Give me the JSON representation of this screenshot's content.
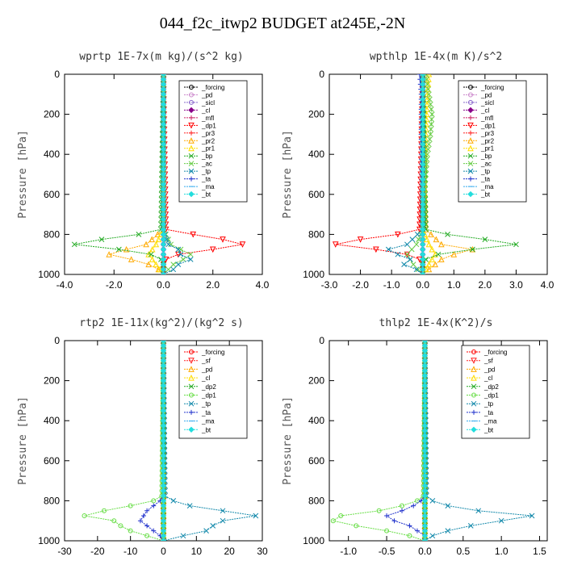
{
  "page": {
    "title": "044_f2c_itwp2  BUDGET at245E,-2N"
  },
  "chart_data": [
    {
      "type": "line",
      "title": "wprtp  1E-7x(m kg)/(s^2 kg)",
      "ylabel": "Pressure [hPa]",
      "xlim": [
        -4.0,
        4.0
      ],
      "ylim": [
        1000,
        0
      ],
      "xticks": [
        "-4.0",
        "-2.0",
        "0.0",
        "2.0",
        "4.0"
      ],
      "yticks": [
        "0",
        "200",
        "400",
        "600",
        "800",
        "1000"
      ],
      "legend_position": "top-right",
      "series": [
        {
          "name": "_forcing",
          "color": "#000000",
          "marker": "o",
          "y": [
            0,
            775,
            1000
          ],
          "x": [
            0,
            0,
            0
          ]
        },
        {
          "name": "_pd",
          "color": "#cc88cc",
          "marker": "o",
          "y": [
            0,
            775,
            1000
          ],
          "x": [
            0,
            0,
            0
          ]
        },
        {
          "name": "_sicl",
          "color": "#8866cc",
          "marker": "o",
          "y": [
            0,
            775,
            1000
          ],
          "x": [
            0,
            0,
            0
          ]
        },
        {
          "name": "_cl",
          "color": "#880088",
          "marker": "d",
          "y": [
            0,
            775,
            1000
          ],
          "x": [
            0,
            0,
            0
          ]
        },
        {
          "name": "_mfl",
          "color": "#cc2266",
          "marker": "+",
          "y": [
            0,
            775,
            1000
          ],
          "x": [
            0,
            0,
            0
          ]
        },
        {
          "name": "_dp1",
          "color": "#ff0000",
          "marker": "v",
          "y": [
            0,
            775,
            800,
            825,
            850,
            875,
            900,
            925,
            950,
            975,
            1000
          ],
          "x": [
            0,
            0.1,
            1.2,
            2.4,
            3.2,
            2.0,
            0.6,
            0.1,
            0,
            0,
            0
          ]
        },
        {
          "name": "_pr3",
          "color": "#ff2222",
          "marker": "+",
          "y": [
            0,
            775,
            1000
          ],
          "x": [
            0,
            0,
            0
          ]
        },
        {
          "name": "_pr2",
          "color": "#ffaa00",
          "marker": "^",
          "y": [
            0,
            775,
            850,
            875,
            900,
            925,
            950,
            975,
            1000
          ],
          "x": [
            0,
            0,
            -0.7,
            -1.5,
            -2.2,
            -1.3,
            -0.6,
            -0.2,
            0
          ]
        },
        {
          "name": "_pr1",
          "color": "#ffdd00",
          "marker": "^",
          "y": [
            0,
            775,
            850,
            900,
            950,
            1000
          ],
          "x": [
            0,
            0,
            -0.3,
            -0.6,
            -0.3,
            0
          ]
        },
        {
          "name": "_bp",
          "color": "#22aa22",
          "marker": "x",
          "y": [
            0,
            775,
            800,
            825,
            850,
            875,
            900,
            925,
            950,
            975,
            1000
          ],
          "x": [
            0,
            -0.1,
            -1.0,
            -2.5,
            -3.6,
            -1.8,
            -0.5,
            -0.1,
            0,
            0,
            0
          ]
        },
        {
          "name": "_ac",
          "color": "#66cc44",
          "marker": "x",
          "y": [
            0,
            775,
            850,
            900,
            925,
            950,
            975,
            1000
          ],
          "x": [
            0,
            0,
            0.3,
            1.1,
            0.8,
            0.4,
            0.2,
            0
          ]
        },
        {
          "name": "_tp",
          "color": "#1188aa",
          "marker": "x",
          "y": [
            0,
            775,
            850,
            875,
            900,
            925,
            950,
            975,
            1000
          ],
          "x": [
            0,
            0,
            0.2,
            0.6,
            0.7,
            1.1,
            0.6,
            0.4,
            0
          ]
        },
        {
          "name": "_ta",
          "color": "#2233cc",
          "marker": "+",
          "y": [
            0,
            775,
            1000
          ],
          "x": [
            0,
            0,
            0
          ]
        },
        {
          "name": "_ma",
          "color": "#33aaee",
          "marker": "-",
          "y": [
            0,
            775,
            1000
          ],
          "x": [
            0,
            0,
            0
          ]
        },
        {
          "name": "_bt",
          "color": "#22dddd",
          "marker": "d",
          "y": [
            0,
            775,
            1000
          ],
          "x": [
            0,
            0,
            0
          ]
        }
      ]
    },
    {
      "type": "line",
      "title": "wpthlp  1E-4x(m K)/s^2",
      "ylabel": "Pressure [hPa]",
      "xlim": [
        -3.0,
        4.0
      ],
      "ylim": [
        1000,
        0
      ],
      "xticks": [
        "-3.0",
        "-2.0",
        "-1.0",
        "0.0",
        "1.0",
        "2.0",
        "3.0",
        "4.0"
      ],
      "yticks": [
        "0",
        "200",
        "400",
        "600",
        "800",
        "1000"
      ],
      "legend_position": "top-right",
      "series": [
        {
          "name": "_forcing",
          "color": "#000000",
          "marker": "o",
          "y": [
            0,
            775,
            1000
          ],
          "x": [
            0,
            0,
            0
          ]
        },
        {
          "name": "_pd",
          "color": "#cc88cc",
          "marker": "o",
          "y": [
            0,
            775,
            1000
          ],
          "x": [
            0,
            0,
            0
          ]
        },
        {
          "name": "_sicl",
          "color": "#8866cc",
          "marker": "o",
          "y": [
            0,
            775,
            1000
          ],
          "x": [
            0,
            0,
            0
          ]
        },
        {
          "name": "_cl",
          "color": "#880088",
          "marker": "d",
          "y": [
            0,
            775,
            1000
          ],
          "x": [
            0,
            0,
            0
          ]
        },
        {
          "name": "_mfl",
          "color": "#cc2266",
          "marker": "+",
          "y": [
            0,
            775,
            1000
          ],
          "x": [
            0,
            0,
            0
          ]
        },
        {
          "name": "_dp1",
          "color": "#ff0000",
          "marker": "v",
          "y": [
            0,
            775,
            800,
            825,
            850,
            875,
            900,
            925,
            950,
            975,
            1000
          ],
          "x": [
            0,
            -0.1,
            -0.8,
            -2.0,
            -2.8,
            -1.5,
            -0.5,
            -0.1,
            0,
            0,
            0
          ]
        },
        {
          "name": "_pr3",
          "color": "#ff2222",
          "marker": "+",
          "y": [
            0,
            775,
            1000
          ],
          "x": [
            0,
            0,
            0
          ]
        },
        {
          "name": "_pr2",
          "color": "#ffaa00",
          "marker": "^",
          "y": [
            0,
            775,
            850,
            875,
            900,
            925,
            950,
            975,
            1000
          ],
          "x": [
            0,
            0.1,
            0.6,
            1.6,
            1.0,
            0.6,
            0.4,
            0.2,
            0
          ]
        },
        {
          "name": "_pr1",
          "color": "#ffdd00",
          "marker": "^",
          "y": [
            0,
            100,
            500,
            775,
            850,
            900,
            950,
            1000
          ],
          "x": [
            0.2,
            0.15,
            0.05,
            0,
            0.2,
            0.4,
            0.2,
            0
          ]
        },
        {
          "name": "_bp",
          "color": "#22aa22",
          "marker": "x",
          "y": [
            0,
            775,
            800,
            825,
            850,
            875,
            900,
            925,
            950,
            975,
            1000
          ],
          "x": [
            0,
            0.1,
            0.8,
            2.0,
            3.0,
            1.6,
            0.5,
            0.1,
            0,
            0,
            0
          ]
        },
        {
          "name": "_ac",
          "color": "#66cc44",
          "marker": "x",
          "y": [
            0,
            100,
            200,
            300,
            400,
            500,
            775,
            850,
            900,
            950,
            1000
          ],
          "x": [
            0.1,
            0.2,
            0.3,
            0.25,
            0.15,
            0.1,
            0,
            -0.2,
            -0.5,
            -0.3,
            0
          ]
        },
        {
          "name": "_tp",
          "color": "#1188aa",
          "marker": "x",
          "y": [
            0,
            775,
            850,
            875,
            900,
            925,
            950,
            975,
            1000
          ],
          "x": [
            0,
            0,
            -0.5,
            -1.1,
            -0.8,
            -0.4,
            -0.6,
            -0.2,
            0
          ]
        },
        {
          "name": "_ta",
          "color": "#2233cc",
          "marker": "+",
          "y": [
            0,
            100,
            300,
            775,
            1000
          ],
          "x": [
            -0.1,
            -0.05,
            -0.05,
            0,
            0
          ]
        },
        {
          "name": "_ma",
          "color": "#33aaee",
          "marker": "-",
          "y": [
            0,
            775,
            1000
          ],
          "x": [
            0,
            0,
            0
          ]
        },
        {
          "name": "_bt",
          "color": "#22dddd",
          "marker": "d",
          "y": [
            0,
            775,
            1000
          ],
          "x": [
            0,
            0,
            0
          ]
        }
      ]
    },
    {
      "type": "line",
      "title": "rtp2  1E-11x(kg^2)/(kg^2 s)",
      "ylabel": "Pressure [hPa]",
      "xlim": [
        -30,
        30
      ],
      "ylim": [
        1000,
        0
      ],
      "xticks": [
        "-30",
        "-20",
        "-10",
        "0",
        "10",
        "20",
        "30"
      ],
      "yticks": [
        "0",
        "200",
        "400",
        "600",
        "800",
        "1000"
      ],
      "legend_position": "top-right",
      "series": [
        {
          "name": "_forcing",
          "color": "#ff0000",
          "marker": "o",
          "y": [
            0,
            775,
            1000
          ],
          "x": [
            0,
            0,
            0
          ]
        },
        {
          "name": "_sf",
          "color": "#ff2222",
          "marker": "v",
          "y": [
            0,
            775,
            1000
          ],
          "x": [
            0,
            0,
            0
          ]
        },
        {
          "name": "_pd",
          "color": "#ffaa00",
          "marker": "^",
          "y": [
            0,
            775,
            1000
          ],
          "x": [
            0,
            0,
            0
          ]
        },
        {
          "name": "_cl",
          "color": "#ffdd00",
          "marker": "^",
          "y": [
            0,
            775,
            1000
          ],
          "x": [
            0,
            0,
            0
          ]
        },
        {
          "name": "_dp2",
          "color": "#22aa22",
          "marker": "x",
          "y": [
            0,
            775,
            1000
          ],
          "x": [
            0,
            0,
            0
          ]
        },
        {
          "name": "_dp1",
          "color": "#66dd44",
          "marker": "o",
          "y": [
            0,
            775,
            800,
            825,
            850,
            875,
            900,
            925,
            950,
            975,
            1000
          ],
          "x": [
            0,
            -0.5,
            -3,
            -10,
            -18,
            -24,
            -15,
            -13,
            -10,
            -5,
            0
          ]
        },
        {
          "name": "_tp",
          "color": "#1188aa",
          "marker": "x",
          "y": [
            0,
            775,
            800,
            825,
            850,
            875,
            900,
            925,
            950,
            975,
            1000
          ],
          "x": [
            0,
            0.5,
            3,
            8,
            18,
            28,
            18,
            15,
            13,
            6,
            0
          ]
        },
        {
          "name": "_ta",
          "color": "#2233cc",
          "marker": "+",
          "y": [
            0,
            775,
            800,
            825,
            850,
            875,
            900,
            925,
            950,
            975,
            1000
          ],
          "x": [
            0,
            0,
            -1,
            -3,
            -5,
            -6,
            -7,
            -5,
            -3,
            -1,
            0
          ]
        },
        {
          "name": "_ma",
          "color": "#33aaee",
          "marker": "-",
          "y": [
            0,
            775,
            1000
          ],
          "x": [
            0,
            0,
            0
          ]
        },
        {
          "name": "_bt",
          "color": "#22dddd",
          "marker": "d",
          "y": [
            0,
            775,
            1000
          ],
          "x": [
            0,
            0,
            0
          ]
        }
      ]
    },
    {
      "type": "line",
      "title": "thlp2  1E-4x(K^2)/s",
      "ylabel": "Pressure [hPa]",
      "xlim": [
        -1.25,
        1.6
      ],
      "ylim": [
        1000,
        0
      ],
      "xticks": [
        "-1.0",
        "-0.5",
        "0.0",
        "0.5",
        "1.0",
        "1.5"
      ],
      "yticks": [
        "0",
        "200",
        "400",
        "600",
        "800",
        "1000"
      ],
      "legend_position": "top-right",
      "series": [
        {
          "name": "_forcing",
          "color": "#ff0000",
          "marker": "o",
          "y": [
            0,
            775,
            1000
          ],
          "x": [
            0,
            0,
            0
          ]
        },
        {
          "name": "_sf",
          "color": "#ff2222",
          "marker": "v",
          "y": [
            0,
            775,
            1000
          ],
          "x": [
            0,
            0,
            0
          ]
        },
        {
          "name": "_pd",
          "color": "#ffaa00",
          "marker": "^",
          "y": [
            0,
            775,
            1000
          ],
          "x": [
            0,
            0,
            0
          ]
        },
        {
          "name": "_cl",
          "color": "#ffdd00",
          "marker": "^",
          "y": [
            0,
            775,
            1000
          ],
          "x": [
            0,
            0,
            0
          ]
        },
        {
          "name": "_dp2",
          "color": "#22aa22",
          "marker": "x",
          "y": [
            0,
            775,
            1000
          ],
          "x": [
            0,
            0,
            0
          ]
        },
        {
          "name": "_dp1",
          "color": "#66dd44",
          "marker": "o",
          "y": [
            0,
            775,
            800,
            825,
            850,
            875,
            900,
            925,
            950,
            975,
            1000
          ],
          "x": [
            0,
            -0.02,
            -0.1,
            -0.3,
            -0.6,
            -1.1,
            -1.2,
            -0.9,
            -0.5,
            -0.2,
            0
          ]
        },
        {
          "name": "_tp",
          "color": "#1188aa",
          "marker": "x",
          "y": [
            0,
            775,
            800,
            825,
            850,
            875,
            900,
            925,
            950,
            975,
            1000
          ],
          "x": [
            0,
            0.02,
            0.1,
            0.3,
            0.7,
            1.4,
            1.0,
            0.6,
            0.3,
            0.1,
            0
          ]
        },
        {
          "name": "_ta",
          "color": "#2233cc",
          "marker": "+",
          "y": [
            0,
            775,
            800,
            825,
            850,
            875,
            900,
            925,
            950,
            975,
            1000
          ],
          "x": [
            0,
            0,
            -0.05,
            -0.15,
            -0.3,
            -0.5,
            -0.4,
            -0.2,
            -0.1,
            0,
            0
          ]
        },
        {
          "name": "_ma",
          "color": "#33aaee",
          "marker": "-",
          "y": [
            0,
            775,
            1000
          ],
          "x": [
            0,
            0,
            0
          ]
        },
        {
          "name": "_bt",
          "color": "#22dddd",
          "marker": "d",
          "y": [
            0,
            775,
            1000
          ],
          "x": [
            0,
            0,
            0
          ]
        }
      ]
    }
  ]
}
